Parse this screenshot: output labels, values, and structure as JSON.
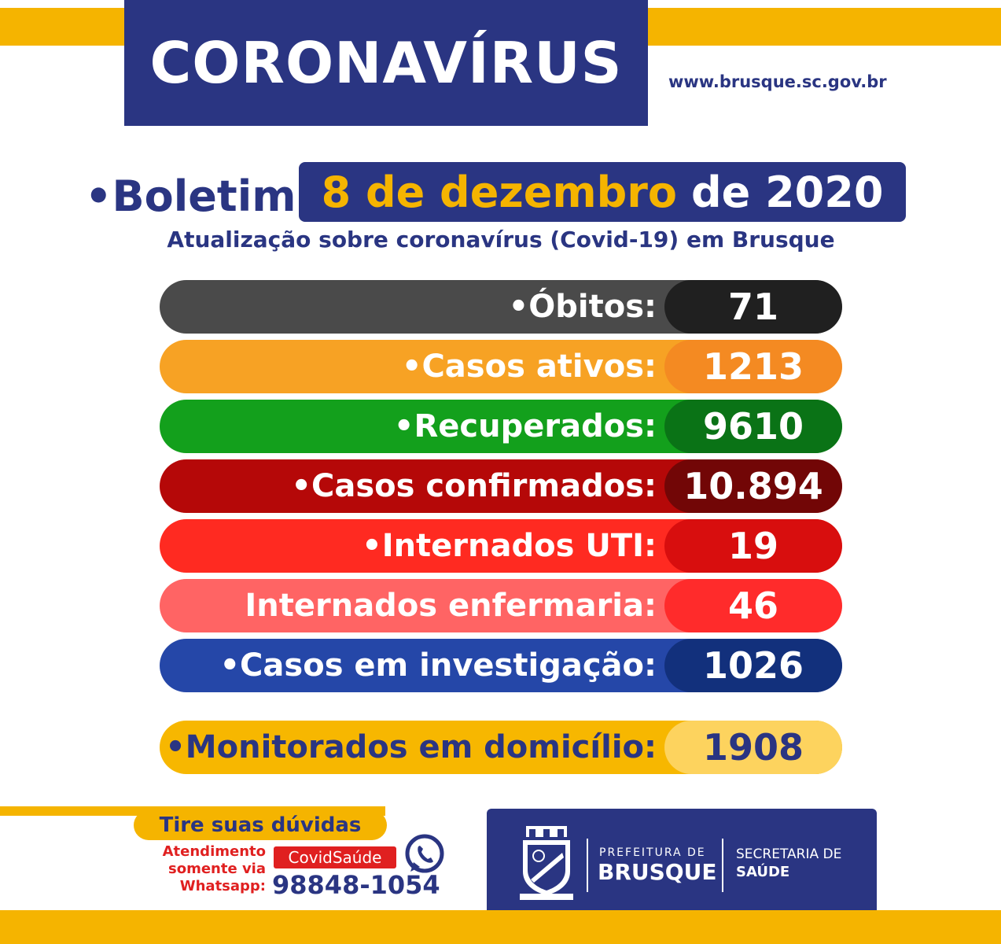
{
  "header": {
    "title": "CORONAVÍRUS",
    "url": "www.brusque.sc.gov.br"
  },
  "bulletin": {
    "label": "•Boletim",
    "date_highlight": "8 de dezembro",
    "date_rest": "de 2020",
    "subtitle": "Atualização sobre coronavírus (Covid-19) em Brusque"
  },
  "stats": [
    {
      "label": "•Óbitos:",
      "value": "71",
      "color": "#4a4a4a",
      "value_color": "#202020"
    },
    {
      "label": "•Casos ativos:",
      "value": "1213",
      "color": "#f7a224",
      "value_color": "#f48a22"
    },
    {
      "label": "•Recuperados:",
      "value": "9610",
      "color": "#13a01c",
      "value_color": "#0a7316"
    },
    {
      "label": "•Casos confirmados:",
      "value": "10.894",
      "color": "#b50808",
      "value_color": "#720606"
    },
    {
      "label": "•Internados UTI:",
      "value": "19",
      "color": "#ff2a21",
      "value_color": "#d80e0e"
    },
    {
      "label": "Internados enfermaria:",
      "value": "46",
      "color": "#ff6464",
      "value_color": "#ff2b2b"
    },
    {
      "label": "•Casos em investigação:",
      "value": "1026",
      "color": "#2547a8",
      "value_color": "#12307c"
    }
  ],
  "monitored": {
    "label": "•Monitorados em domicílio:",
    "value": "1908",
    "color": "#f7b700",
    "value_color": "#fdd35e",
    "text_color": "#2a3582"
  },
  "contact": {
    "tire": "Tire suas dúvidas",
    "atend_line1": "Atendimento",
    "atend_line2": "somente via",
    "atend_line3": "Whatsapp:",
    "tag": "CovidSaúde",
    "phone": "98848-1054"
  },
  "logo": {
    "pref_small": "PREFEITURA DE",
    "pref_big": "BRUSQUE",
    "sec_line1": "SECRETARIA DE",
    "sec_line2": "SAÚDE",
    "crest_text": "BRUSQUE"
  }
}
